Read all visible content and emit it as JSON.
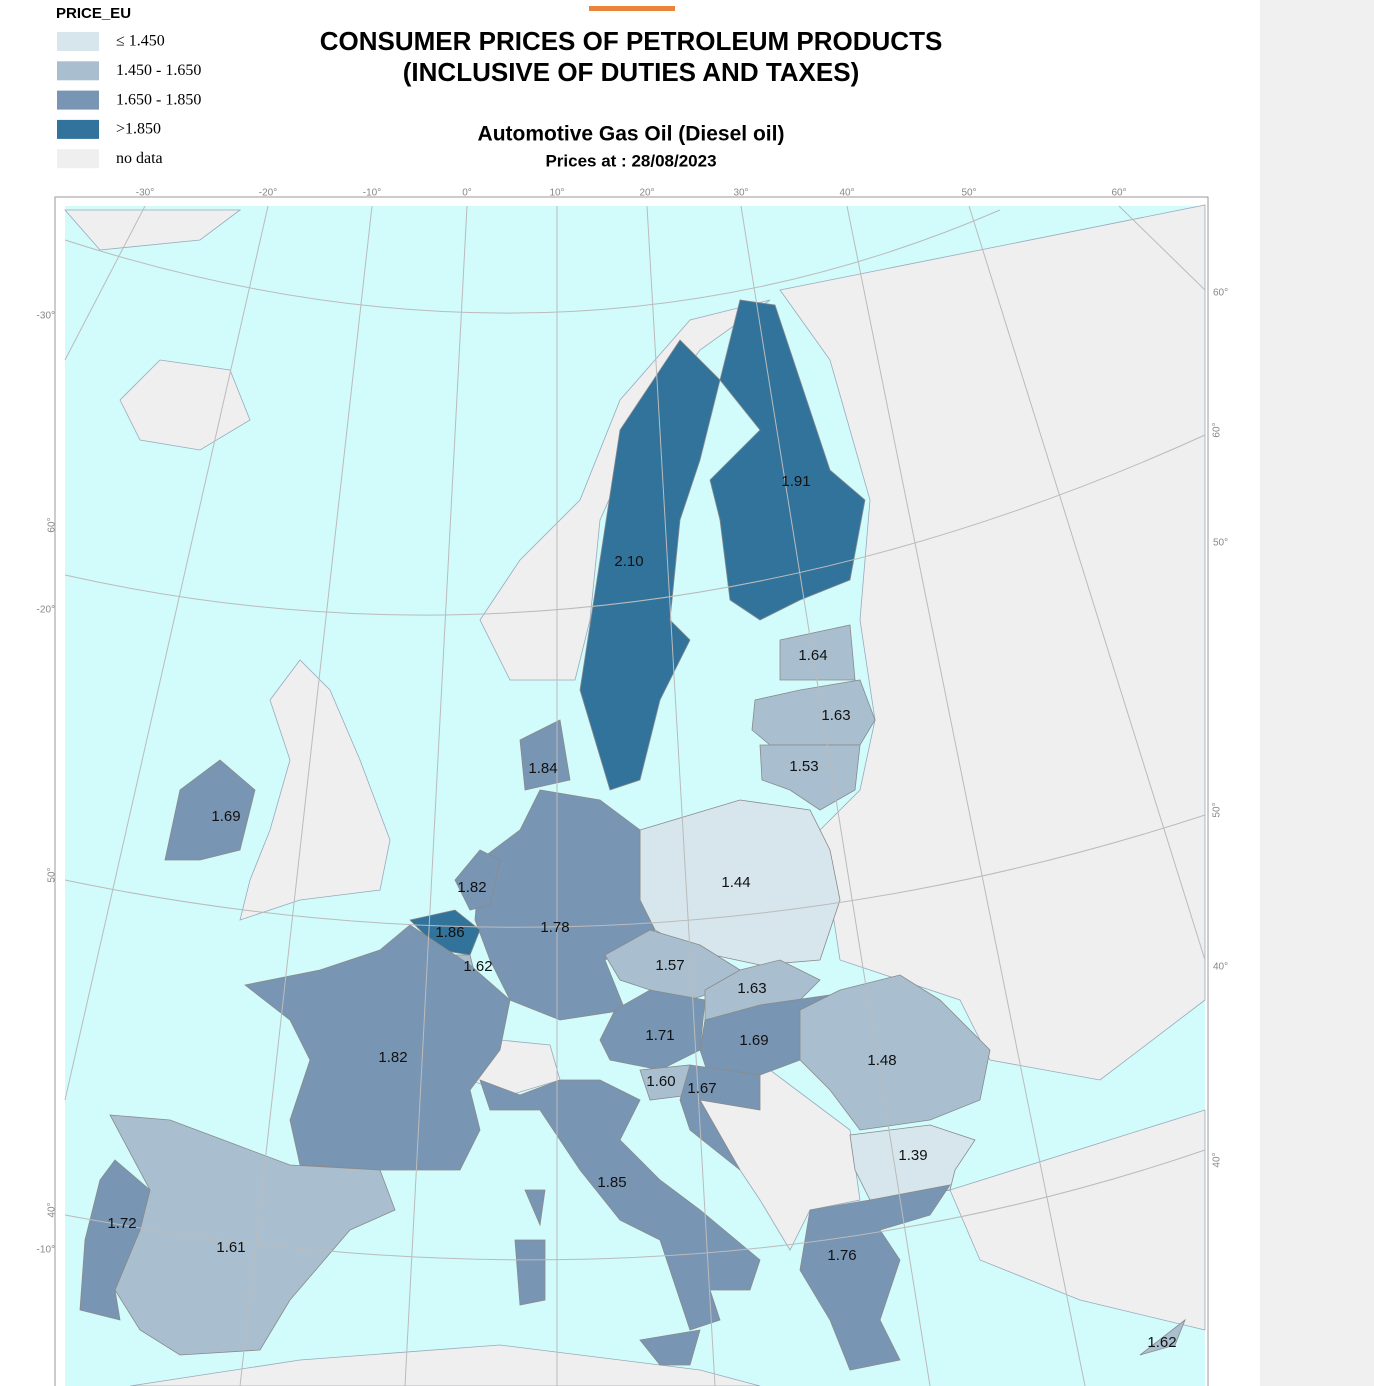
{
  "legend": {
    "title": "PRICE_EU",
    "items": [
      {
        "label": "≤ 1.450",
        "color": "#d6e6ec"
      },
      {
        "label": "1.450 - 1.650",
        "color": "#a9bfcf"
      },
      {
        "label": "1.650 - 1.850",
        "color": "#7896b3"
      },
      {
        "label": ">1.850",
        "color": "#32739c"
      },
      {
        "label": "no data",
        "color": "#efefef"
      }
    ]
  },
  "title": {
    "line1": "CONSUMER PRICES OF PETROLEUM PRODUCTS",
    "line2": "(INCLUSIVE OF DUTIES AND TAXES)"
  },
  "subtitle": "Automotive Gas Oil (Diesel oil)",
  "date": "Prices at : 28/08/2023",
  "graticule": {
    "top": [
      "-30°",
      "-20°",
      "-10°",
      "0°",
      "10°",
      "20°",
      "30°",
      "40°",
      "50°",
      "60°"
    ],
    "right": [
      "60°",
      "60°",
      "50°",
      "50°",
      "40°",
      "40°"
    ],
    "left": [
      "-30°",
      "60°",
      "-20°",
      "50°",
      "40°",
      "-10°"
    ]
  },
  "regions": [
    {
      "label": "2.10"
    },
    {
      "label": "1.91"
    },
    {
      "label": "1.64"
    },
    {
      "label": "1.63"
    },
    {
      "label": "1.53"
    },
    {
      "label": "1.84"
    },
    {
      "label": "1.69"
    },
    {
      "label": "1.44"
    },
    {
      "label": "1.82"
    },
    {
      "label": "1.78"
    },
    {
      "label": "1.86"
    },
    {
      "label": "1.62"
    },
    {
      "label": "1.57"
    },
    {
      "label": "1.63"
    },
    {
      "label": "1.82"
    },
    {
      "label": "1.71"
    },
    {
      "label": "1.69"
    },
    {
      "label": "1.48"
    },
    {
      "label": "1.60"
    },
    {
      "label": "1.67"
    },
    {
      "label": "1.39"
    },
    {
      "label": "1.85"
    },
    {
      "label": "1.76"
    },
    {
      "label": "1.72"
    },
    {
      "label": "1.61"
    },
    {
      "label": "1.62"
    }
  ]
}
